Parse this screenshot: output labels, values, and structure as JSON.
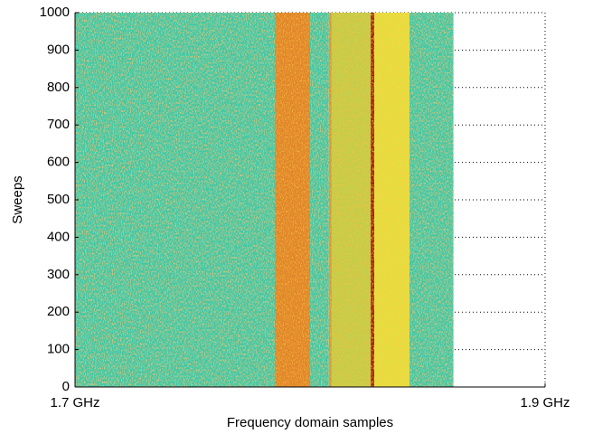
{
  "chart_data": {
    "type": "heatmap",
    "xlabel": "Frequency domain samples",
    "ylabel": "Sweeps",
    "xlim": [
      1.7,
      1.9
    ],
    "ylim": [
      0,
      1000
    ],
    "xticks": [
      {
        "value": 1.7,
        "label": "1.7 GHz"
      },
      {
        "value": 1.9,
        "label": "1.9 GHz"
      }
    ],
    "yticks": [
      0,
      100,
      200,
      300,
      400,
      500,
      600,
      700,
      800,
      900,
      1000
    ],
    "grid": true,
    "bands": [
      {
        "x": [
          1.7,
          1.785
        ],
        "color": "#3fc8a6"
      },
      {
        "x": [
          1.785,
          1.8
        ],
        "color": "#e0862c"
      },
      {
        "x": [
          1.8,
          1.808
        ],
        "color": "#3fc8a6"
      },
      {
        "x": [
          1.808,
          1.8092
        ],
        "color": "#d49a3a"
      },
      {
        "x": [
          1.8092,
          1.8258
        ],
        "color": "#c4cc4a"
      },
      {
        "x": [
          1.8258,
          1.8273
        ],
        "color": "#a81210"
      },
      {
        "x": [
          1.8273,
          1.8423
        ],
        "color": "#e6de40"
      },
      {
        "x": [
          1.8423,
          1.861
        ],
        "color": "#3fc8a6"
      }
    ]
  }
}
